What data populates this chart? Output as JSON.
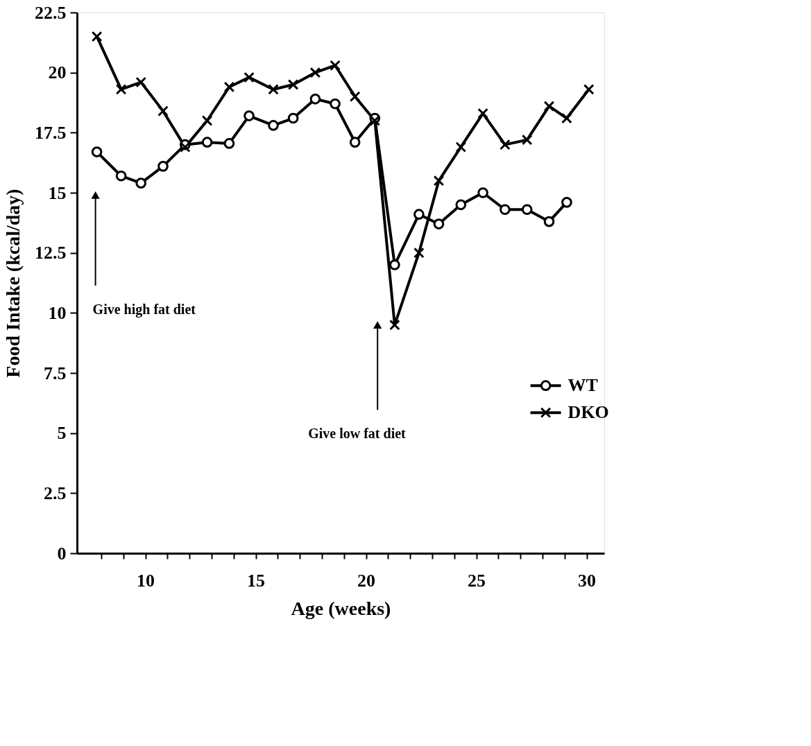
{
  "chart_data": {
    "type": "line",
    "xlabel": "Age (weeks)",
    "ylabel": "Food Intake (kcal/day)",
    "xlim": [
      6.9,
      30.8
    ],
    "ylim": [
      0,
      22.5
    ],
    "xticks": [
      {
        "value": 8,
        "label": null
      },
      {
        "value": 9,
        "label": null
      },
      10,
      {
        "value": 11,
        "label": null
      },
      {
        "value": 12,
        "label": null
      },
      {
        "value": 13,
        "label": null
      },
      {
        "value": 14,
        "label": null
      },
      15,
      {
        "value": 16,
        "label": null
      },
      {
        "value": 17,
        "label": null
      },
      {
        "value": 18,
        "label": null
      },
      {
        "value": 19,
        "label": null
      },
      20,
      {
        "value": 21,
        "label": null
      },
      {
        "value": 22,
        "label": null
      },
      {
        "value": 23,
        "label": null
      },
      {
        "value": 24,
        "label": null
      },
      25,
      {
        "value": 26,
        "label": null
      },
      {
        "value": 27,
        "label": null
      },
      {
        "value": 28,
        "label": null
      },
      {
        "value": 29,
        "label": null
      },
      30
    ],
    "yticks": [
      0,
      2.5,
      5,
      7.5,
      10,
      12.5,
      15,
      17.5,
      20,
      22.5
    ],
    "grid": false,
    "legend": "right",
    "line_style": "solid",
    "series": [
      {
        "name": "WT",
        "color": "#000000",
        "marker": "circle",
        "x": [
          7.8,
          8.9,
          9.8,
          10.8,
          11.8,
          12.8,
          13.8,
          14.7,
          15.8,
          16.7,
          17.7,
          18.6,
          19.5,
          20.4,
          21.3,
          22.4,
          23.3,
          24.3,
          25.3,
          26.3,
          27.3,
          28.3,
          29.1
        ],
        "values": [
          16.7,
          15.7,
          15.4,
          16.1,
          17,
          17.1,
          17.05,
          18.2,
          17.8,
          18.1,
          18.9,
          18.7,
          17.1,
          18.1,
          12,
          14.1,
          13.7,
          14.5,
          15,
          14.3,
          14.3,
          13.8,
          14.6
        ]
      },
      {
        "name": "DKO",
        "color": "#000000",
        "marker": "cross",
        "x": [
          7.8,
          8.9,
          9.8,
          10.8,
          11.8,
          12.8,
          13.8,
          14.7,
          15.8,
          16.7,
          17.7,
          18.6,
          19.5,
          20.4,
          21.3,
          22.4,
          23.3,
          24.3,
          25.3,
          26.3,
          27.3,
          28.3,
          29.1,
          30.1
        ],
        "values": [
          21.5,
          19.3,
          19.6,
          18.4,
          16.9,
          18,
          19.4,
          19.8,
          19.3,
          19.5,
          20,
          20.3,
          19,
          18,
          9.5,
          12.5,
          15.5,
          16.9,
          18.3,
          17,
          17.2,
          18.6,
          18.1,
          19.3
        ]
      }
    ],
    "annotations": [
      "Give high fat diet",
      "Give low fat diet"
    ]
  }
}
